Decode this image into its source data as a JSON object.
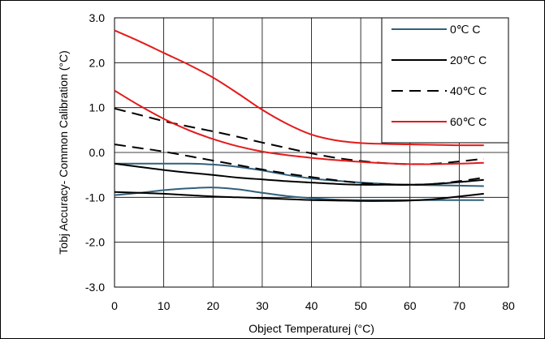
{
  "chart_data": {
    "type": "line",
    "title": "",
    "xlabel": "Object Temperaturej (°C)",
    "ylabel": "Tobj Accuracy-  Common Calibration (°C)",
    "xlim": [
      0,
      80
    ],
    "ylim": [
      -3.0,
      3.0
    ],
    "xticks": [
      "0",
      "10",
      "20",
      "30",
      "40",
      "50",
      "60",
      "70",
      "80"
    ],
    "yticks": [
      "3.0",
      "2.0",
      "1.0",
      "0.0",
      "-1.0",
      "-2.0",
      "-3.0"
    ],
    "grid": true,
    "legend_position": "top-right",
    "series": [
      {
        "name": "0℃ C",
        "color": "#31607A",
        "dash": "solid",
        "x": [
          0,
          5,
          10,
          15,
          20,
          25,
          30,
          35,
          40,
          45,
          50,
          55,
          60,
          65,
          70,
          75
        ],
        "y": [
          -0.25,
          -0.25,
          -0.25,
          -0.25,
          -0.27,
          -0.32,
          -0.4,
          -0.5,
          -0.58,
          -0.63,
          -0.67,
          -0.7,
          -0.72,
          -0.73,
          -0.74,
          -0.75
        ]
      },
      {
        "name": "0℃ C",
        "color": "#31607A",
        "dash": "solid",
        "x": [
          0,
          5,
          10,
          15,
          20,
          25,
          30,
          35,
          40,
          45,
          50,
          55,
          60,
          65,
          70,
          75
        ],
        "y": [
          -0.95,
          -0.9,
          -0.84,
          -0.8,
          -0.78,
          -0.82,
          -0.9,
          -0.97,
          -1.02,
          -1.05,
          -1.06,
          -1.06,
          -1.06,
          -1.06,
          -1.06,
          -1.06
        ]
      },
      {
        "name": "20℃ C",
        "color": "#000000",
        "dash": "solid",
        "x": [
          0,
          5,
          10,
          15,
          20,
          25,
          30,
          35,
          40,
          45,
          50,
          55,
          60,
          65,
          70,
          75
        ],
        "y": [
          -0.25,
          -0.32,
          -0.39,
          -0.45,
          -0.5,
          -0.56,
          -0.6,
          -0.64,
          -0.67,
          -0.7,
          -0.72,
          -0.72,
          -0.72,
          -0.7,
          -0.66,
          -0.61
        ]
      },
      {
        "name": "20℃ C",
        "color": "#000000",
        "dash": "solid",
        "x": [
          0,
          5,
          10,
          15,
          20,
          25,
          30,
          35,
          40,
          45,
          50,
          55,
          60,
          65,
          70,
          75
        ],
        "y": [
          -0.88,
          -0.9,
          -0.92,
          -0.95,
          -0.98,
          -1.0,
          -1.02,
          -1.04,
          -1.06,
          -1.07,
          -1.08,
          -1.08,
          -1.07,
          -1.04,
          -0.98,
          -0.92
        ]
      },
      {
        "name": "40℃ C",
        "color": "#000000",
        "dash": "dashed",
        "x": [
          0,
          5,
          10,
          15,
          20,
          25,
          30,
          35,
          40,
          45,
          50,
          55,
          60,
          65,
          70,
          75
        ],
        "y": [
          0.98,
          0.84,
          0.7,
          0.58,
          0.47,
          0.35,
          0.22,
          0.1,
          -0.02,
          -0.12,
          -0.19,
          -0.24,
          -0.26,
          -0.25,
          -0.2,
          -0.14
        ]
      },
      {
        "name": "40℃ C",
        "color": "#000000",
        "dash": "dashed",
        "x": [
          0,
          5,
          10,
          15,
          20,
          25,
          30,
          35,
          40,
          45,
          50,
          55,
          60,
          65,
          70,
          75
        ],
        "y": [
          0.18,
          0.1,
          0.02,
          -0.08,
          -0.18,
          -0.28,
          -0.38,
          -0.47,
          -0.55,
          -0.62,
          -0.68,
          -0.71,
          -0.72,
          -0.7,
          -0.64,
          -0.56
        ]
      },
      {
        "name": "60℃ C",
        "color": "#E41A1A",
        "dash": "solid",
        "x": [
          0,
          5,
          10,
          15,
          20,
          25,
          30,
          35,
          40,
          45,
          50,
          55,
          60,
          65,
          70,
          75
        ],
        "y": [
          2.72,
          2.48,
          2.22,
          1.96,
          1.67,
          1.32,
          0.95,
          0.64,
          0.4,
          0.27,
          0.21,
          0.19,
          0.18,
          0.17,
          0.16,
          0.16
        ]
      },
      {
        "name": "60℃ C",
        "color": "#E41A1A",
        "dash": "solid",
        "x": [
          0,
          5,
          10,
          15,
          20,
          25,
          30,
          35,
          40,
          45,
          50,
          55,
          60,
          65,
          70,
          75
        ],
        "y": [
          1.38,
          1.05,
          0.75,
          0.5,
          0.3,
          0.14,
          0.02,
          -0.06,
          -0.12,
          -0.17,
          -0.21,
          -0.24,
          -0.26,
          -0.26,
          -0.25,
          -0.23
        ]
      }
    ],
    "legend": [
      {
        "label": "0℃ C",
        "color": "#31607A",
        "dash": "solid"
      },
      {
        "label": "20℃ C",
        "color": "#000000",
        "dash": "solid"
      },
      {
        "label": "40℃ C",
        "color": "#000000",
        "dash": "dashed"
      },
      {
        "label": "60℃ C",
        "color": "#E41A1A",
        "dash": "solid"
      }
    ]
  }
}
